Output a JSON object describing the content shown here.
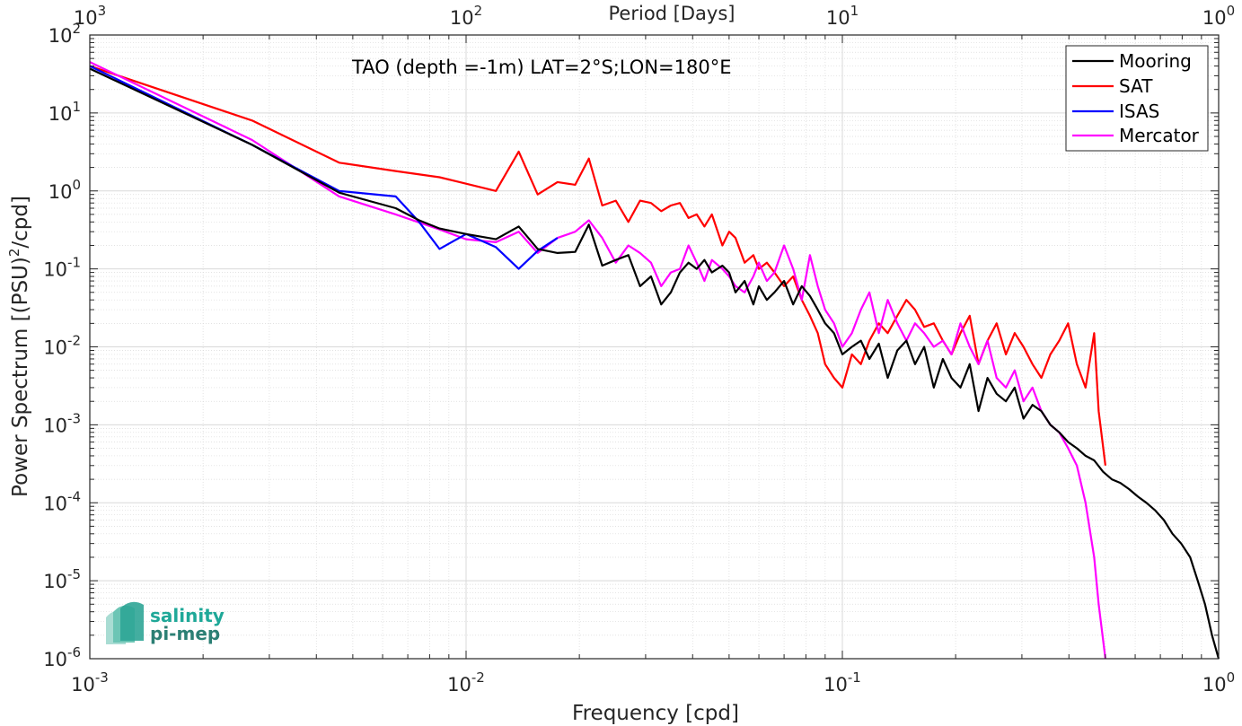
{
  "chart_data": {
    "type": "line",
    "title": "TAO (depth =-1m) LAT=2°S;LON=180°E",
    "xlabel": "Frequency [cpd]",
    "ylabel_main": "Power Spectrum [(PSU)",
    "ylabel_sup": "2",
    "ylabel_tail": "/cpd]",
    "top_xlabel": "Period [Days]",
    "xscale": "log",
    "yscale": "log",
    "xlim": [
      0.001,
      1
    ],
    "ylim": [
      1e-06,
      100
    ],
    "grid": true,
    "legend_position": "top-right",
    "x_ticks": [
      {
        "base": "10",
        "exp": "-3"
      },
      {
        "base": "10",
        "exp": "-2"
      },
      {
        "base": "10",
        "exp": "-1"
      },
      {
        "base": "10",
        "exp": "0"
      }
    ],
    "top_ticks": [
      {
        "base": "10",
        "exp": "3"
      },
      {
        "base": "10",
        "exp": "2"
      },
      {
        "base": "10",
        "exp": "1"
      },
      {
        "base": "10",
        "exp": "0"
      }
    ],
    "y_ticks": [
      {
        "base": "10",
        "exp": "2"
      },
      {
        "base": "10",
        "exp": "1"
      },
      {
        "base": "10",
        "exp": "0"
      },
      {
        "base": "10",
        "exp": "-1"
      },
      {
        "base": "10",
        "exp": "-2"
      },
      {
        "base": "10",
        "exp": "-3"
      },
      {
        "base": "10",
        "exp": "-4"
      },
      {
        "base": "10",
        "exp": "-5"
      },
      {
        "base": "10",
        "exp": "-6"
      }
    ],
    "series": [
      {
        "name": "Mooring",
        "color": "#000000",
        "x": [
          0.001,
          0.0027,
          0.0046,
          0.0065,
          0.0075,
          0.0085,
          0.01,
          0.012,
          0.0138,
          0.0155,
          0.0175,
          0.0195,
          0.0212,
          0.023,
          0.025,
          0.027,
          0.029,
          0.031,
          0.033,
          0.035,
          0.037,
          0.039,
          0.041,
          0.043,
          0.045,
          0.048,
          0.05,
          0.052,
          0.055,
          0.058,
          0.06,
          0.063,
          0.066,
          0.07,
          0.074,
          0.078,
          0.082,
          0.086,
          0.09,
          0.095,
          0.1,
          0.106,
          0.112,
          0.118,
          0.125,
          0.132,
          0.14,
          0.148,
          0.156,
          0.165,
          0.175,
          0.185,
          0.195,
          0.206,
          0.218,
          0.23,
          0.243,
          0.257,
          0.272,
          0.287,
          0.303,
          0.32,
          0.338,
          0.357,
          0.377,
          0.398,
          0.42,
          0.443,
          0.467,
          0.493,
          0.52,
          0.548,
          0.578,
          0.61,
          0.643,
          0.678,
          0.715,
          0.754,
          0.795,
          0.84,
          0.88,
          0.92,
          0.96,
          1.0
        ],
        "y": [
          37,
          3.9,
          0.95,
          0.6,
          0.42,
          0.33,
          0.28,
          0.24,
          0.35,
          0.18,
          0.16,
          0.165,
          0.37,
          0.11,
          0.13,
          0.15,
          0.06,
          0.08,
          0.035,
          0.05,
          0.09,
          0.12,
          0.1,
          0.13,
          0.09,
          0.11,
          0.09,
          0.05,
          0.07,
          0.035,
          0.06,
          0.04,
          0.05,
          0.07,
          0.035,
          0.06,
          0.045,
          0.03,
          0.02,
          0.015,
          0.008,
          0.01,
          0.012,
          0.007,
          0.011,
          0.004,
          0.009,
          0.012,
          0.006,
          0.01,
          0.003,
          0.007,
          0.004,
          0.003,
          0.006,
          0.0015,
          0.004,
          0.0025,
          0.002,
          0.003,
          0.0012,
          0.0018,
          0.0015,
          0.001,
          0.0008,
          0.0006,
          0.0005,
          0.0004,
          0.00035,
          0.00025,
          0.0002,
          0.00018,
          0.00015,
          0.00012,
          0.0001,
          8e-05,
          6e-05,
          4e-05,
          3e-05,
          2e-05,
          1e-05,
          5e-06,
          2e-06,
          1e-06
        ]
      },
      {
        "name": "SAT",
        "color": "#ff0000",
        "x": [
          0.001,
          0.0027,
          0.0046,
          0.0065,
          0.0085,
          0.012,
          0.0138,
          0.0155,
          0.0175,
          0.0195,
          0.0212,
          0.023,
          0.025,
          0.027,
          0.029,
          0.031,
          0.033,
          0.035,
          0.037,
          0.039,
          0.041,
          0.043,
          0.045,
          0.048,
          0.05,
          0.052,
          0.055,
          0.058,
          0.06,
          0.063,
          0.066,
          0.07,
          0.074,
          0.078,
          0.082,
          0.086,
          0.09,
          0.095,
          0.1,
          0.106,
          0.112,
          0.118,
          0.125,
          0.132,
          0.14,
          0.148,
          0.156,
          0.165,
          0.175,
          0.185,
          0.195,
          0.206,
          0.218,
          0.23,
          0.243,
          0.257,
          0.272,
          0.287,
          0.303,
          0.32,
          0.338,
          0.357,
          0.377,
          0.398,
          0.42,
          0.443,
          0.467,
          0.48,
          0.5
        ],
        "y": [
          40,
          8,
          2.3,
          1.8,
          1.5,
          1.0,
          3.2,
          0.9,
          1.3,
          1.2,
          2.6,
          0.65,
          0.75,
          0.4,
          0.75,
          0.7,
          0.55,
          0.65,
          0.7,
          0.45,
          0.5,
          0.35,
          0.5,
          0.2,
          0.3,
          0.25,
          0.12,
          0.15,
          0.1,
          0.12,
          0.09,
          0.06,
          0.08,
          0.04,
          0.025,
          0.015,
          0.006,
          0.004,
          0.003,
          0.008,
          0.006,
          0.012,
          0.02,
          0.015,
          0.025,
          0.04,
          0.03,
          0.018,
          0.02,
          0.012,
          0.008,
          0.015,
          0.025,
          0.006,
          0.012,
          0.02,
          0.008,
          0.015,
          0.01,
          0.006,
          0.004,
          0.008,
          0.012,
          0.02,
          0.006,
          0.003,
          0.015,
          0.0015,
          0.0003
        ]
      },
      {
        "name": "ISAS",
        "color": "#0000ff",
        "x": [
          0.001,
          0.0027,
          0.0046,
          0.0065,
          0.0075,
          0.0085,
          0.01,
          0.012,
          0.0138,
          0.0155,
          0.0175
        ],
        "y": [
          40,
          3.9,
          1.0,
          0.85,
          0.4,
          0.18,
          0.28,
          0.19,
          0.1,
          0.17,
          0.25
        ]
      },
      {
        "name": "Mercator",
        "color": "#ff00ff",
        "x": [
          0.001,
          0.0027,
          0.0046,
          0.0065,
          0.0085,
          0.01,
          0.012,
          0.0138,
          0.0155,
          0.0175,
          0.0195,
          0.0212,
          0.023,
          0.025,
          0.027,
          0.029,
          0.031,
          0.033,
          0.035,
          0.037,
          0.039,
          0.041,
          0.043,
          0.045,
          0.048,
          0.05,
          0.052,
          0.055,
          0.058,
          0.06,
          0.063,
          0.066,
          0.07,
          0.074,
          0.078,
          0.082,
          0.086,
          0.09,
          0.095,
          0.1,
          0.106,
          0.112,
          0.118,
          0.125,
          0.132,
          0.14,
          0.148,
          0.156,
          0.165,
          0.175,
          0.185,
          0.195,
          0.206,
          0.218,
          0.23,
          0.243,
          0.257,
          0.272,
          0.287,
          0.303,
          0.32,
          0.338,
          0.357,
          0.377,
          0.398,
          0.42,
          0.443,
          0.467,
          0.48,
          0.5
        ],
        "y": [
          45,
          4.5,
          0.85,
          0.5,
          0.32,
          0.24,
          0.22,
          0.3,
          0.16,
          0.25,
          0.3,
          0.42,
          0.25,
          0.12,
          0.2,
          0.16,
          0.12,
          0.06,
          0.09,
          0.1,
          0.2,
          0.12,
          0.07,
          0.13,
          0.1,
          0.08,
          0.06,
          0.05,
          0.08,
          0.12,
          0.07,
          0.09,
          0.2,
          0.1,
          0.04,
          0.15,
          0.06,
          0.03,
          0.02,
          0.01,
          0.015,
          0.03,
          0.05,
          0.015,
          0.04,
          0.02,
          0.012,
          0.02,
          0.015,
          0.01,
          0.012,
          0.008,
          0.02,
          0.01,
          0.006,
          0.012,
          0.004,
          0.003,
          0.005,
          0.002,
          0.003,
          0.0015,
          0.001,
          0.0008,
          0.0005,
          0.0003,
          0.0001,
          2e-05,
          5e-06,
          1e-06
        ]
      }
    ]
  },
  "logo": {
    "line1": "salinity",
    "line2": "pi-mep",
    "color": "#1fa898"
  }
}
